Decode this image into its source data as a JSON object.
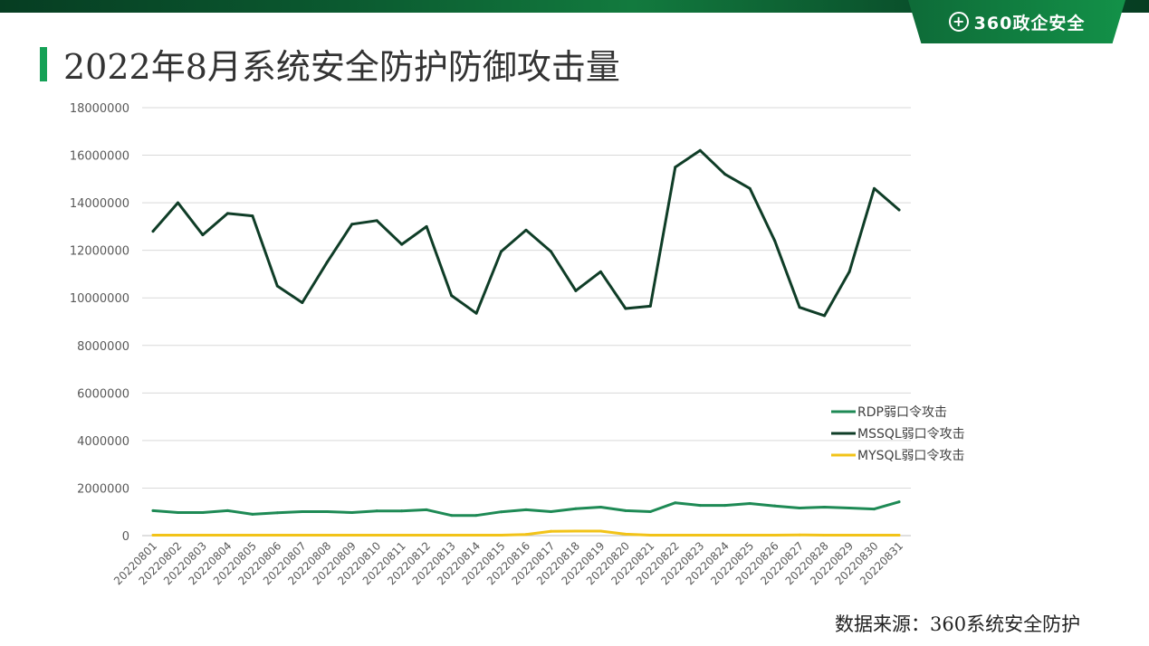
{
  "brand": {
    "icon": "plus-circle-icon",
    "text": "360政企安全"
  },
  "page_title": "2022年8月系统安全防护防御攻击量",
  "source_note": "数据来源：360系统安全防护",
  "chart_data": {
    "type": "line",
    "title": "2022年8月系统安全防护防御攻击量",
    "xlabel": "",
    "ylabel": "",
    "ylim": [
      0,
      18000000
    ],
    "yticks": [
      0,
      2000000,
      4000000,
      6000000,
      8000000,
      10000000,
      12000000,
      14000000,
      16000000,
      18000000
    ],
    "ytick_labels": [
      "0",
      "2000000",
      "4000000",
      "6000000",
      "8000000",
      "10000000",
      "12000000",
      "14000000",
      "16000000",
      "18000000"
    ],
    "grid": true,
    "legend_position": "right",
    "categories": [
      "20220801",
      "20220802",
      "20220803",
      "20220804",
      "20220805",
      "20220806",
      "20220807",
      "20220808",
      "20220809",
      "20220810",
      "20220811",
      "20220812",
      "20220813",
      "20220814",
      "20220815",
      "20220816",
      "20220817",
      "20220818",
      "20220819",
      "20220820",
      "20220821",
      "20220822",
      "20220823",
      "20220824",
      "20220825",
      "20220826",
      "20220827",
      "20220828",
      "20220829",
      "20220830",
      "20220831"
    ],
    "series": [
      {
        "name": "RDP弱口令攻击",
        "color": "#1e8a55",
        "values": [
          1050000,
          970000,
          970000,
          1050000,
          900000,
          960000,
          1010000,
          1010000,
          970000,
          1040000,
          1040000,
          1090000,
          850000,
          850000,
          1000000,
          1090000,
          1010000,
          1130000,
          1200000,
          1050000,
          1010000,
          1380000,
          1270000,
          1270000,
          1350000,
          1250000,
          1160000,
          1200000,
          1160000,
          1120000,
          1420000
        ]
      },
      {
        "name": "MSSQL弱口令攻击",
        "color": "#0f3d27",
        "values": [
          12800000,
          14000000,
          12650000,
          13550000,
          13450000,
          10500000,
          9800000,
          11500000,
          13100000,
          13250000,
          12250000,
          13000000,
          10100000,
          9350000,
          11950000,
          12850000,
          11950000,
          10300000,
          11100000,
          9550000,
          9650000,
          15500000,
          16200000,
          15200000,
          14600000,
          12400000,
          9600000,
          9250000,
          11100000,
          14600000,
          13700000
        ]
      },
      {
        "name": "MYSQL弱口令攻击",
        "color": "#f2c318",
        "values": [
          20000,
          20000,
          20000,
          20000,
          20000,
          20000,
          20000,
          20000,
          20000,
          20000,
          20000,
          20000,
          20000,
          20000,
          20000,
          50000,
          180000,
          190000,
          190000,
          60000,
          20000,
          20000,
          20000,
          20000,
          20000,
          20000,
          30000,
          20000,
          20000,
          20000,
          20000
        ]
      }
    ]
  }
}
